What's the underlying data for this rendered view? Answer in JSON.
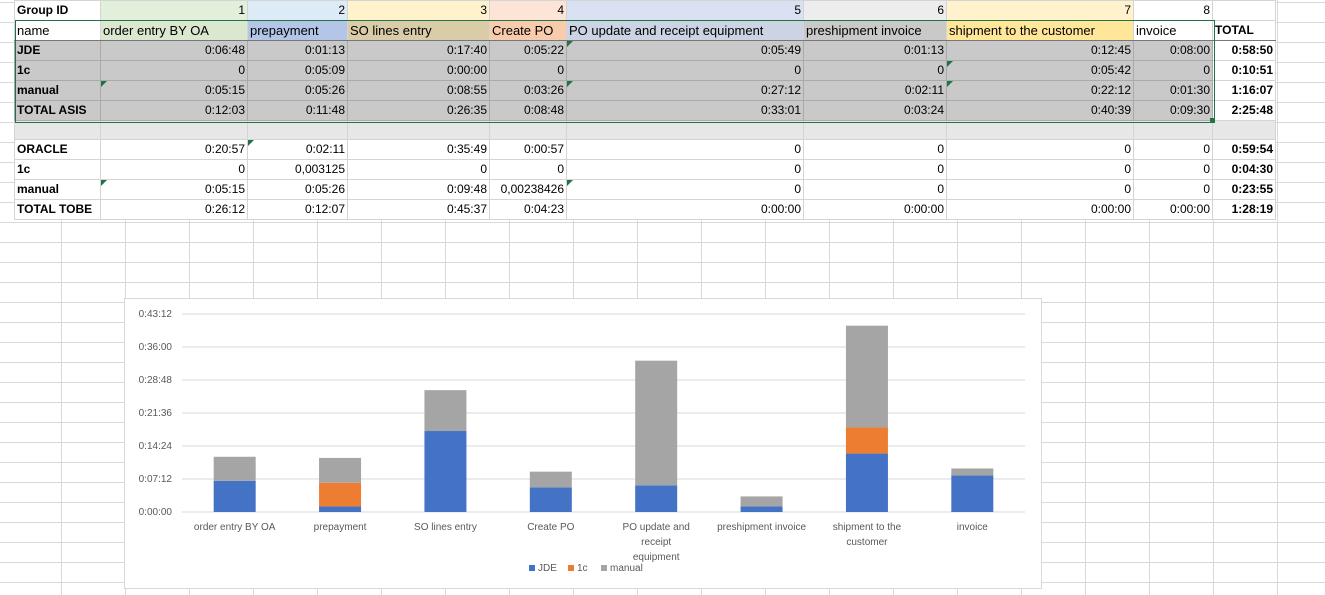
{
  "colors": {
    "header_bg": [
      "#e2efda",
      "#ddebf7",
      "#fff2cc",
      "#fce4d6",
      "#d9e1f2",
      "#ededed",
      "#fff2cc",
      "#ffffff"
    ],
    "subheader_bg": [
      "#dbe7cf",
      "#b4c6e7",
      "#d9cca6",
      "#f8cbad",
      "#ccd4e4",
      "#c9c9c9",
      "#ffe699",
      "#ffffff"
    ],
    "jde": "#4472c4",
    "onec": "#ed7d31",
    "manual": "#a5a5a5",
    "selection": "#217346"
  },
  "sheet": {
    "group_id_label": "Group ID",
    "group_ids": [
      "1",
      "2",
      "3",
      "4",
      "5",
      "6",
      "7",
      "8"
    ],
    "name_label": "name",
    "stages": [
      "order entry BY OA",
      "prepayment",
      "SO lines entry",
      "Create PO",
      "PO update and receipt equipment",
      "preshipment invoice",
      "shipment to the customer",
      "invoice"
    ],
    "total_label": "TOTAL",
    "asis_rows": [
      {
        "name": "JDE",
        "values": [
          "0:06:48",
          "0:01:13",
          "0:17:40",
          "0:05:22",
          "0:05:49",
          "0:01:13",
          "0:12:45",
          "0:08:00"
        ],
        "total": "0:58:50"
      },
      {
        "name": "1c",
        "values": [
          "0",
          "0:05:09",
          "0:00:00",
          "0",
          "0",
          "0",
          "0:05:42",
          "0"
        ],
        "total": "0:10:51"
      },
      {
        "name": "manual",
        "values": [
          "0:05:15",
          "0:05:26",
          "0:08:55",
          "0:03:26",
          "0:27:12",
          "0:02:11",
          "0:22:12",
          "0:01:30"
        ],
        "total": "1:16:07"
      },
      {
        "name": "TOTAL ASIS",
        "values": [
          "0:12:03",
          "0:11:48",
          "0:26:35",
          "0:08:48",
          "0:33:01",
          "0:03:24",
          "0:40:39",
          "0:09:30"
        ],
        "total": "2:25:48"
      }
    ],
    "tobe_rows": [
      {
        "name": "ORACLE",
        "values": [
          "0:20:57",
          "0:02:11",
          "0:35:49",
          "0:00:57",
          "0",
          "0",
          "0",
          "0"
        ],
        "total": "0:59:54"
      },
      {
        "name": "1c",
        "values": [
          "0",
          "0,003125",
          "0",
          "0",
          "0",
          "0",
          "0",
          "0"
        ],
        "total": "0:04:30"
      },
      {
        "name": "manual",
        "values": [
          "0:05:15",
          "0:05:26",
          "0:09:48",
          "0,00238426",
          "0",
          "0",
          "0",
          "0"
        ],
        "total": "0:23:55"
      },
      {
        "name": "TOTAL TOBE",
        "values": [
          "0:26:12",
          "0:12:07",
          "0:45:37",
          "0:04:23",
          "0:00:00",
          "0:00:00",
          "0:00:00",
          "0:00:00"
        ],
        "total": "1:28:19"
      }
    ]
  },
  "chart_data": {
    "type": "bar",
    "stacked": true,
    "categories": [
      "order entry BY OA",
      "prepayment",
      "SO lines entry",
      "Create PO",
      "PO update and receipt equipment",
      "preshipment invoice",
      "shipment to the customer",
      "invoice"
    ],
    "series": [
      {
        "name": "JDE",
        "values": [
          "0:06:48",
          "0:01:13",
          "0:17:40",
          "0:05:22",
          "0:05:49",
          "0:01:13",
          "0:12:45",
          "0:08:00"
        ]
      },
      {
        "name": "1c",
        "values": [
          "0:00:00",
          "0:05:09",
          "0:00:00",
          "0:00:00",
          "0:00:00",
          "0:00:00",
          "0:05:42",
          "0:00:00"
        ]
      },
      {
        "name": "manual",
        "values": [
          "0:05:15",
          "0:05:26",
          "0:08:55",
          "0:03:26",
          "0:27:12",
          "0:02:11",
          "0:22:12",
          "0:01:30"
        ]
      }
    ],
    "y_ticks": [
      "0:00:00",
      "0:07:12",
      "0:14:24",
      "0:21:36",
      "0:28:48",
      "0:36:00",
      "0:43:12"
    ],
    "ylim": [
      "0:00:00",
      "0:43:12"
    ],
    "grid": true,
    "legend_position": "bottom"
  }
}
